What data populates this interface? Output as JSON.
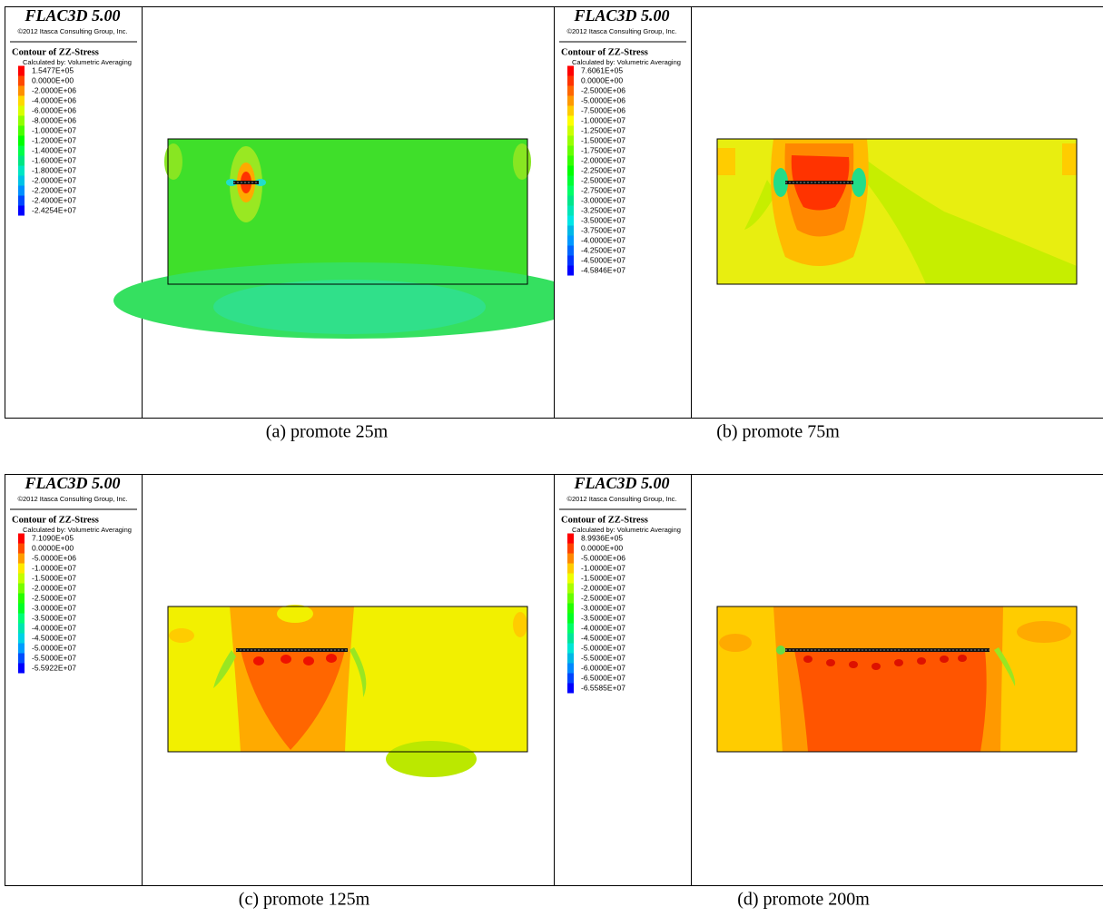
{
  "panels": [
    {
      "software": "FLAC3D 5.00",
      "copyright": "©2012 Itasca Consulting Group, Inc.",
      "contour_title": "Contour of ZZ-Stress",
      "calculated_by": "Calculated by: Volumetric Averaging",
      "legend": [
        "1.5477E+05",
        "0.0000E+00",
        "-2.0000E+06",
        "-4.0000E+06",
        "-6.0000E+06",
        "-8.0000E+06",
        "-1.0000E+07",
        "-1.2000E+07",
        "-1.4000E+07",
        "-1.6000E+07",
        "-1.8000E+07",
        "-2.0000E+07",
        "-2.2000E+07",
        "-2.4000E+07",
        "-2.4254E+07"
      ],
      "caption": "(a) promote 25m"
    },
    {
      "software": "FLAC3D 5.00",
      "copyright": "©2012 Itasca Consulting Group, Inc.",
      "contour_title": "Contour of ZZ-Stress",
      "calculated_by": "Calculated by: Volumetric Averaging",
      "legend": [
        "7.6061E+05",
        "0.0000E+00",
        "-2.5000E+06",
        "-5.0000E+06",
        "-7.5000E+06",
        "-1.0000E+07",
        "-1.2500E+07",
        "-1.5000E+07",
        "-1.7500E+07",
        "-2.0000E+07",
        "-2.2500E+07",
        "-2.5000E+07",
        "-2.7500E+07",
        "-3.0000E+07",
        "-3.2500E+07",
        "-3.5000E+07",
        "-3.7500E+07",
        "-4.0000E+07",
        "-4.2500E+07",
        "-4.5000E+07",
        "-4.5846E+07"
      ],
      "caption": "(b) promote 75m"
    },
    {
      "software": "FLAC3D 5.00",
      "copyright": "©2012 Itasca Consulting Group, Inc.",
      "contour_title": "Contour of ZZ-Stress",
      "calculated_by": "Calculated by: Volumetric Averaging",
      "legend": [
        "7.1090E+05",
        "0.0000E+00",
        "-5.0000E+06",
        "-1.0000E+07",
        "-1.5000E+07",
        "-2.0000E+07",
        "-2.5000E+07",
        "-3.0000E+07",
        "-3.5000E+07",
        "-4.0000E+07",
        "-4.5000E+07",
        "-5.0000E+07",
        "-5.5000E+07",
        "-5.5922E+07"
      ],
      "caption": "(c) promote 125m"
    },
    {
      "software": "FLAC3D 5.00",
      "copyright": "©2012 Itasca Consulting Group, Inc.",
      "contour_title": "Contour of ZZ-Stress",
      "calculated_by": "Calculated by: Volumetric Averaging",
      "legend": [
        "8.9936E+05",
        "0.0000E+00",
        "-5.0000E+06",
        "-1.0000E+07",
        "-1.5000E+07",
        "-2.0000E+07",
        "-2.5000E+07",
        "-3.0000E+07",
        "-3.5000E+07",
        "-4.0000E+07",
        "-4.5000E+07",
        "-5.0000E+07",
        "-5.5000E+07",
        "-6.0000E+07",
        "-6.5000E+07",
        "-6.5585E+07"
      ],
      "caption": "(d) promote 200m"
    }
  ]
}
